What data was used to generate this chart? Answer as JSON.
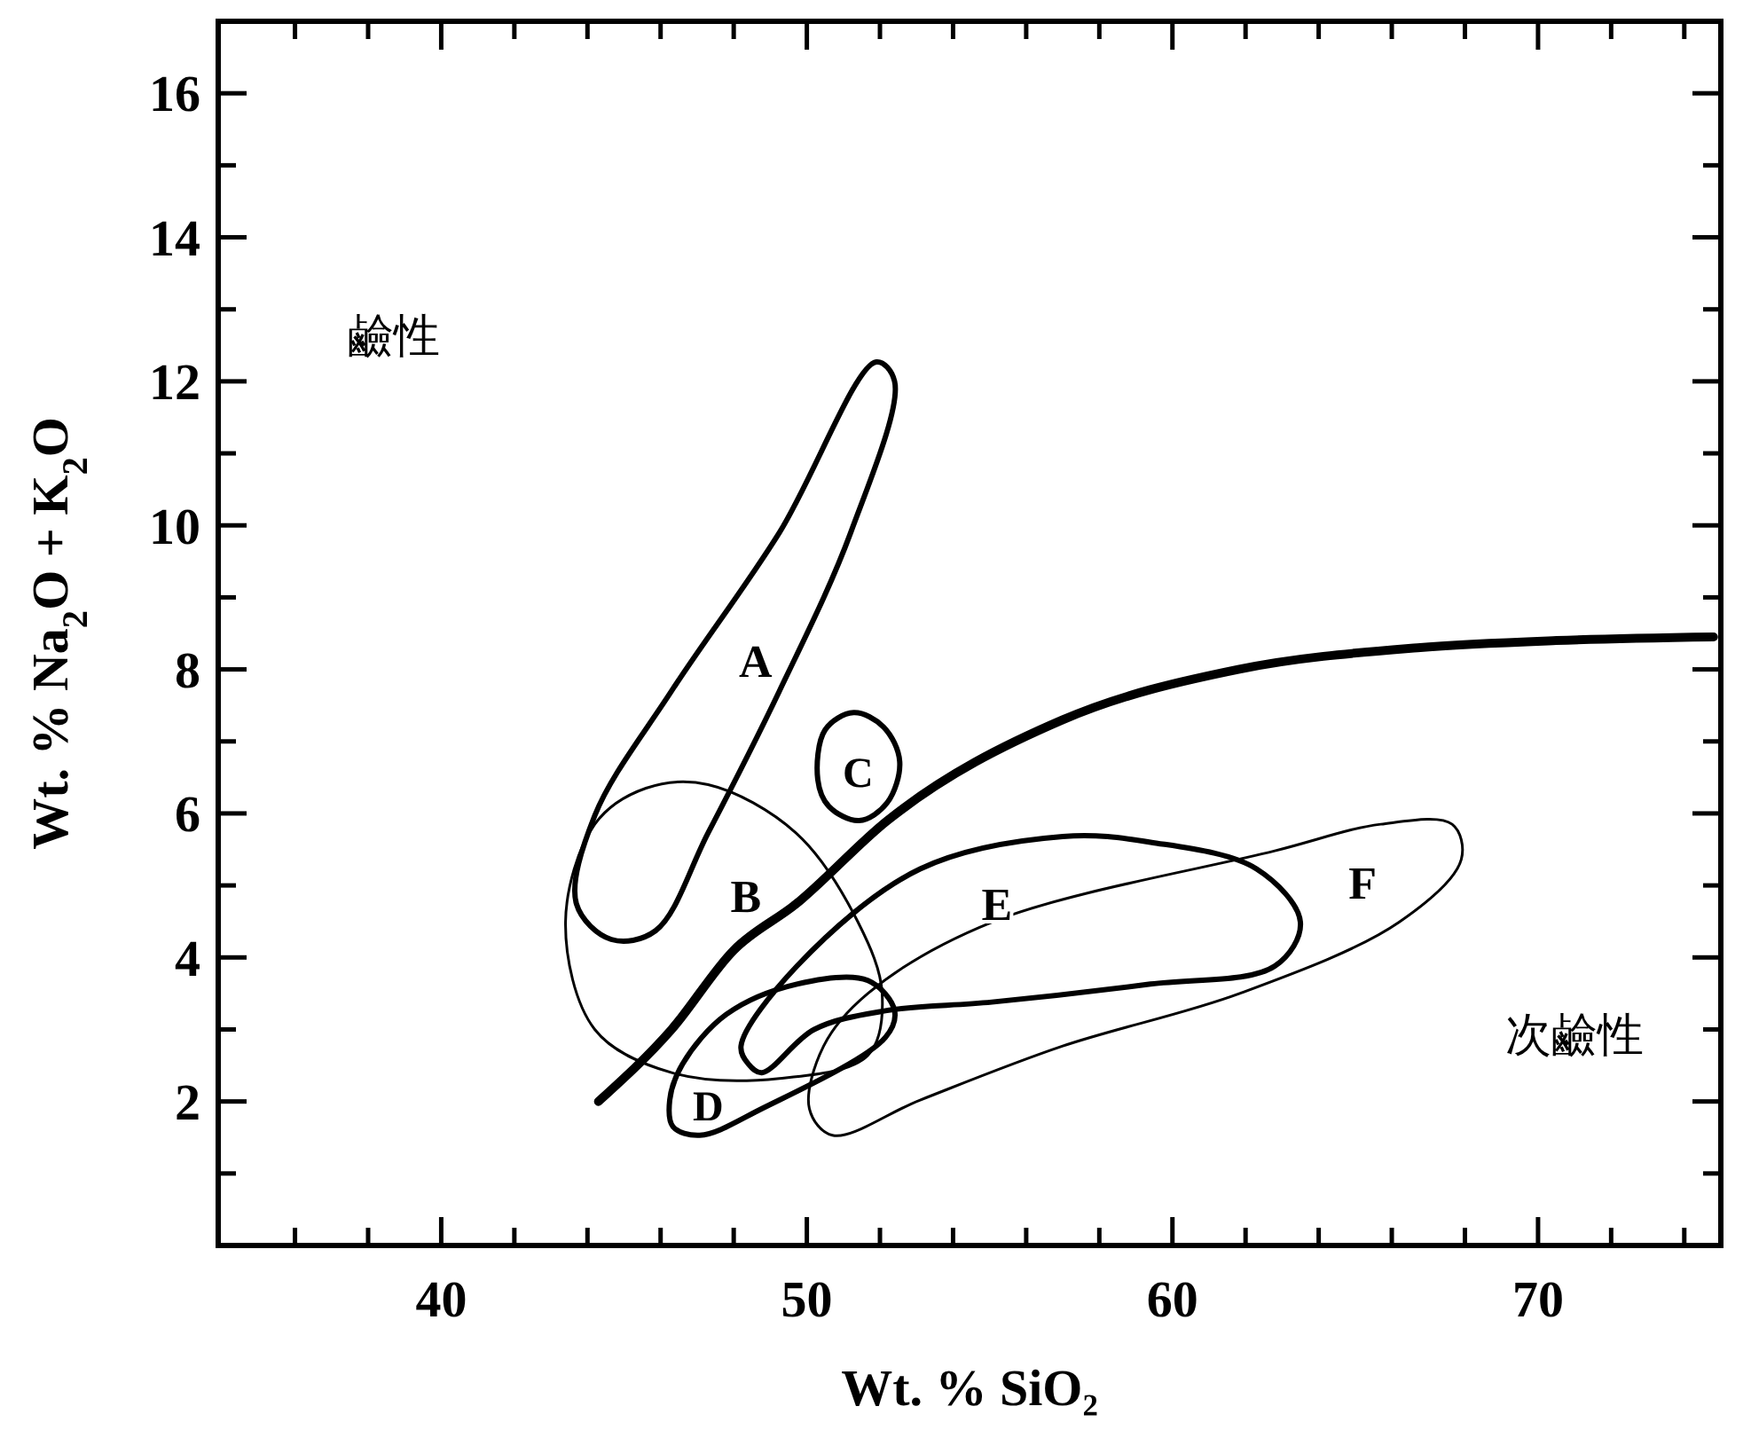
{
  "chart_data": {
    "type": "line",
    "xlabel": "Wt. % SiO₂",
    "ylabel": "Wt. % Na$_{2}$O + K$_{2}$O",
    "xlim": [
      33.9,
      75
    ],
    "ylim": [
      0,
      17
    ],
    "xticks": [
      {
        "value": 36,
        "label": null
      },
      {
        "value": 38,
        "label": null
      },
      40,
      {
        "value": 42,
        "label": null
      },
      {
        "value": 44,
        "label": null
      },
      {
        "value": 46,
        "label": null
      },
      {
        "value": 48,
        "label": null
      },
      50,
      {
        "value": 52,
        "label": null
      },
      {
        "value": 54,
        "label": null
      },
      {
        "value": 56,
        "label": null
      },
      {
        "value": 58,
        "label": null
      },
      60,
      {
        "value": 62,
        "label": null
      },
      {
        "value": 64,
        "label": null
      },
      {
        "value": 66,
        "label": null
      },
      {
        "value": 68,
        "label": null
      },
      70,
      {
        "value": 72,
        "label": null
      },
      {
        "value": 74,
        "label": null
      }
    ],
    "yticks": [
      {
        "value": 1,
        "label": null
      },
      2,
      {
        "value": 3,
        "label": null
      },
      4,
      {
        "value": 5,
        "label": null
      },
      6,
      {
        "value": 7,
        "label": null
      },
      8,
      {
        "value": 9,
        "label": null
      },
      10,
      {
        "value": 11,
        "label": null
      },
      12,
      {
        "value": 13,
        "label": null
      },
      14,
      {
        "value": 15,
        "label": null
      },
      16
    ],
    "grid": false,
    "marker": "none",
    "line_style": "solid",
    "series": [
      {
        "color": "#000000",
        "x": [
          44.3,
          46.3,
          48.0,
          49.7,
          52.2,
          57.0,
          61.8,
          66.7,
          70.5,
          74.8
        ],
        "values": [
          2.0,
          3.0,
          4.1,
          4.74,
          5.9,
          7.3,
          8.0,
          8.3,
          8.4,
          8.45
        ]
      }
    ],
    "annotations": [
      "A",
      "B",
      "C",
      "D",
      "E",
      "F",
      "鹼性",
      "次鹼性"
    ]
  }
}
